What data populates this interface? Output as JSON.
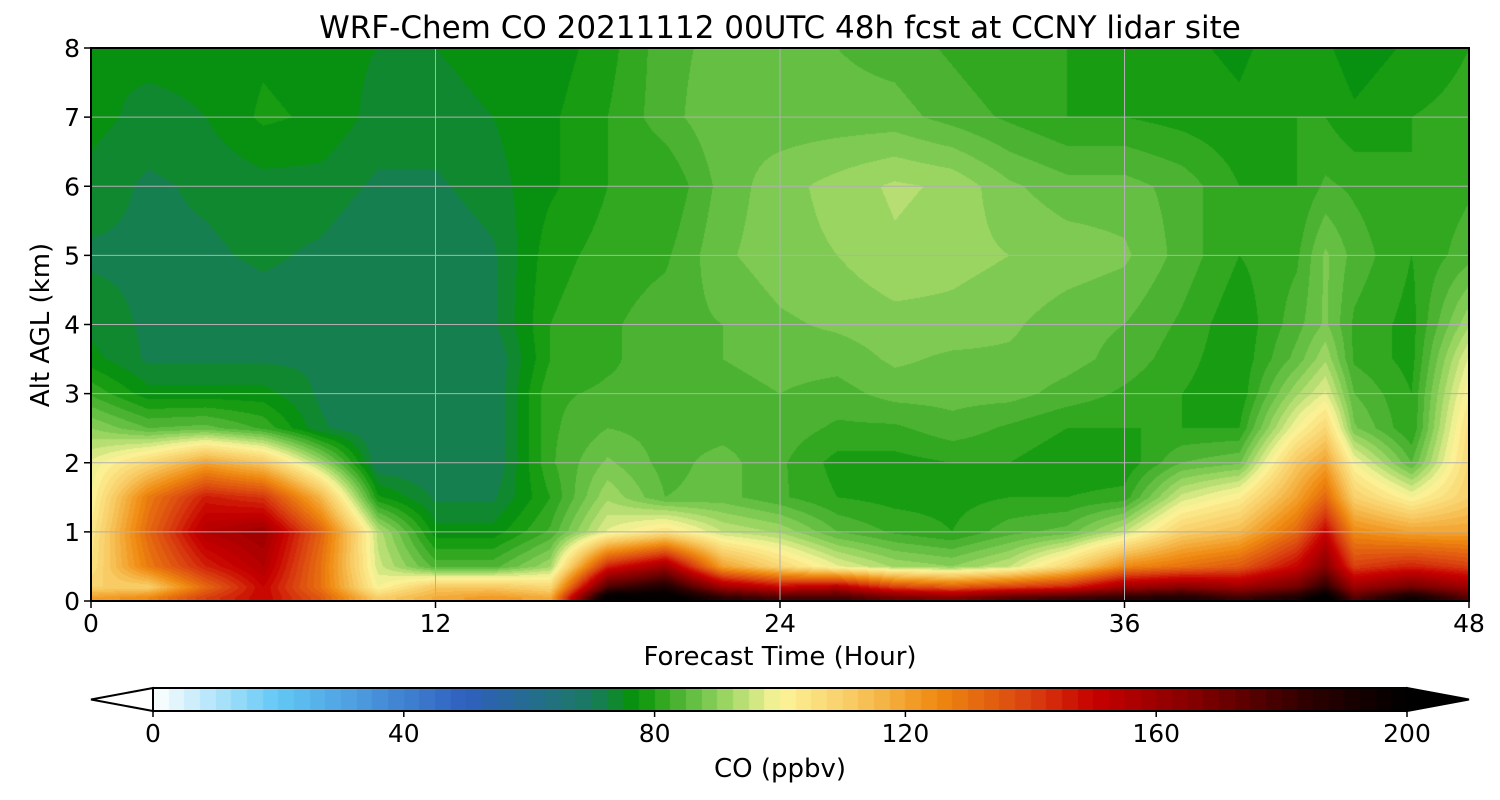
{
  "chart_data": {
    "type": "heatmap",
    "title": "WRF-Chem CO  20211112 00UTC 48h fcst at CCNY lidar site",
    "xlabel": "Forecast Time (Hour)",
    "ylabel": "Alt AGL (km)",
    "xlim": [
      0,
      48
    ],
    "ylim": [
      0,
      8
    ],
    "x_ticks": [
      "0",
      "12",
      "24",
      "36",
      "48"
    ],
    "y_ticks": [
      "0",
      "1",
      "2",
      "3",
      "4",
      "5",
      "6",
      "7",
      "8"
    ],
    "grid": true,
    "x": [
      0,
      2,
      4,
      6,
      8,
      10,
      12,
      14,
      16,
      18,
      20,
      22,
      24,
      26,
      28,
      30,
      32,
      34,
      36,
      38,
      40,
      42,
      43,
      44,
      46,
      48
    ],
    "y": [
      0.05,
      0.2,
      0.5,
      1.0,
      1.5,
      2.0,
      2.5,
      3.0,
      3.5,
      4.0,
      5.0,
      6.0,
      7.0,
      8.0
    ],
    "z": [
      [
        120,
        125,
        140,
        150,
        135,
        110,
        118,
        122,
        118,
        205,
        205,
        185,
        178,
        180,
        170,
        165,
        175,
        180,
        185,
        190,
        180,
        190,
        205,
        175,
        195,
        175
      ],
      [
        110,
        110,
        132,
        150,
        130,
        100,
        112,
        112,
        108,
        178,
        190,
        160,
        150,
        155,
        140,
        135,
        140,
        145,
        160,
        165,
        160,
        170,
        185,
        160,
        170,
        160
      ],
      [
        105,
        128,
        145,
        155,
        130,
        96,
        84,
        84,
        92,
        145,
        160,
        120,
        108,
        98,
        92,
        90,
        95,
        108,
        125,
        130,
        135,
        150,
        165,
        140,
        145,
        140
      ],
      [
        103,
        132,
        155,
        160,
        133,
        94,
        76,
        76,
        83,
        98,
        105,
        95,
        92,
        85,
        82,
        80,
        84,
        86,
        95,
        110,
        115,
        132,
        150,
        125,
        120,
        120
      ],
      [
        100,
        128,
        146,
        142,
        116,
        78,
        72,
        72,
        80,
        92,
        85,
        86,
        83,
        80,
        79,
        79,
        80,
        80,
        81,
        96,
        102,
        120,
        132,
        110,
        100,
        110
      ],
      [
        98,
        108,
        120,
        112,
        92,
        70,
        70,
        70,
        82,
        88,
        84,
        86,
        83,
        79,
        79,
        80,
        80,
        78,
        78,
        85,
        87,
        112,
        120,
        100,
        85,
        108
      ],
      [
        90,
        85,
        86,
        82,
        73,
        70,
        70,
        70,
        82,
        85,
        84,
        84,
        84,
        82,
        82,
        84,
        82,
        80,
        80,
        80,
        80,
        100,
        108,
        88,
        80,
        106
      ],
      [
        82,
        76,
        76,
        76,
        72,
        70,
        70,
        70,
        82,
        83,
        83,
        84,
        85,
        84,
        86,
        86,
        86,
        84,
        82,
        80,
        78,
        92,
        98,
        85,
        80,
        102
      ],
      [
        76,
        72,
        72,
        72,
        72,
        70,
        70,
        70,
        80,
        82,
        84,
        85,
        86,
        86,
        88,
        87,
        87,
        86,
        84,
        81,
        78,
        86,
        92,
        82,
        79,
        98
      ],
      [
        74,
        72,
        70,
        71,
        71,
        70,
        70,
        72,
        80,
        82,
        84,
        85,
        87,
        88,
        89,
        89,
        88,
        86,
        85,
        82,
        78,
        84,
        88,
        82,
        79,
        92
      ],
      [
        72,
        72,
        72,
        73,
        72,
        70,
        70,
        72,
        79,
        81,
        82,
        87,
        89,
        90,
        92,
        91,
        90,
        89,
        88,
        84,
        80,
        82,
        88,
        84,
        80,
        84
      ],
      [
        74,
        72,
        73,
        74,
        74,
        72,
        72,
        74,
        77,
        80,
        80,
        86,
        89,
        91,
        93,
        92,
        88,
        86,
        86,
        84,
        80,
        80,
        83,
        82,
        80,
        82
      ],
      [
        76,
        74,
        75,
        78,
        77,
        74,
        74,
        75,
        77,
        80,
        84,
        87,
        86,
        86,
        86,
        84,
        82,
        80,
        80,
        79,
        78,
        80,
        80,
        78,
        80,
        81
      ],
      [
        75,
        76,
        76,
        77,
        76,
        75,
        75,
        76,
        76,
        79,
        84,
        86,
        86,
        85,
        84,
        82,
        80,
        80,
        78,
        78,
        77,
        79,
        78,
        76,
        78,
        80
      ]
    ],
    "colorbar": {
      "label": "CO  (ppbv)",
      "min": 0,
      "max": 200,
      "ticks": [
        "0",
        "40",
        "80",
        "120",
        "160",
        "200"
      ],
      "extend": "both",
      "colors": [
        {
          "value": 0,
          "color": "#ffffff"
        },
        {
          "value": 20,
          "color": "#62c8f5"
        },
        {
          "value": 50,
          "color": "#2f5fbf"
        },
        {
          "value": 70,
          "color": "#1a7a60"
        },
        {
          "value": 77,
          "color": "#069406"
        },
        {
          "value": 90,
          "color": "#8cd05a"
        },
        {
          "value": 100,
          "color": "#fdf59a"
        },
        {
          "value": 112,
          "color": "#f8c860"
        },
        {
          "value": 125,
          "color": "#f08a10"
        },
        {
          "value": 140,
          "color": "#d94010"
        },
        {
          "value": 150,
          "color": "#c80000"
        },
        {
          "value": 168,
          "color": "#7a0000"
        },
        {
          "value": 185,
          "color": "#2a0000"
        },
        {
          "value": 200,
          "color": "#000000"
        }
      ]
    }
  }
}
